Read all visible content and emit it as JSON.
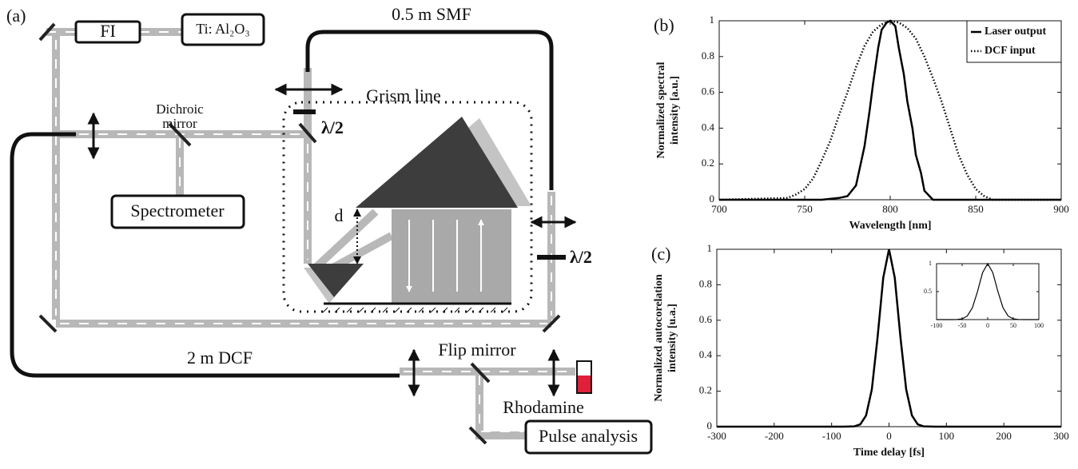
{
  "diagram": {
    "panel": "(a)",
    "fi": "FI",
    "laser": "Ti: Al₂O₃",
    "smf": "0.5 m SMF",
    "dichroic": [
      "Dichroic",
      "mirror"
    ],
    "grism": "Grism line",
    "half_wave": [
      "λ/2",
      "λ/2"
    ],
    "spectrometer": "Spectrometer",
    "d": "d",
    "dcf": "2 m DCF",
    "flip": "Flip mirror",
    "dye": "Rhodamine",
    "pulse": "Pulse analysis"
  },
  "chart_data": [
    {
      "type": "line",
      "panel": "(b)",
      "xlabel": "Wavelength [nm]",
      "ylabel": [
        "Normalized spectral",
        "intensity [a.u.]"
      ],
      "xlim": [
        700,
        900
      ],
      "xticks": [
        700,
        750,
        800,
        850,
        900
      ],
      "ylim": [
        0,
        1
      ],
      "yticks": [
        0,
        0.2,
        0.4,
        0.6,
        0.8,
        1
      ],
      "legend": "upper right",
      "series": [
        {
          "name": "Laser output",
          "color": "#000000",
          "dash": "solid",
          "x": [
            700,
            760,
            770,
            775,
            780,
            785,
            788,
            790,
            793,
            795,
            798,
            800,
            803,
            805,
            808,
            810,
            813,
            815,
            818,
            820,
            823,
            825,
            830,
            900
          ],
          "values": [
            0,
            0,
            0.01,
            0.02,
            0.08,
            0.3,
            0.5,
            0.65,
            0.85,
            0.95,
            0.99,
            1,
            0.97,
            0.85,
            0.7,
            0.55,
            0.4,
            0.25,
            0.15,
            0.05,
            0.02,
            0,
            0,
            0
          ]
        },
        {
          "name": "DCF input",
          "color": "#000000",
          "dash": "dotted",
          "x": [
            700,
            740,
            745,
            750,
            755,
            760,
            765,
            770,
            775,
            780,
            785,
            790,
            795,
            800,
            805,
            810,
            815,
            820,
            825,
            830,
            835,
            840,
            845,
            850,
            855,
            860,
            900
          ],
          "values": [
            0,
            0.01,
            0.03,
            0.06,
            0.12,
            0.22,
            0.33,
            0.47,
            0.6,
            0.74,
            0.86,
            0.94,
            0.98,
            1,
            0.99,
            0.96,
            0.9,
            0.8,
            0.68,
            0.55,
            0.4,
            0.25,
            0.14,
            0.06,
            0.02,
            0,
            0
          ]
        }
      ]
    },
    {
      "type": "line",
      "panel": "(c)",
      "xlabel": "Time delay [fs]",
      "ylabel": [
        "Normalized autocorelation",
        "intensity [u.a.]"
      ],
      "xlim": [
        -300,
        300
      ],
      "xticks": [
        -300,
        -200,
        -100,
        0,
        100,
        200,
        300
      ],
      "ylim": [
        0,
        1
      ],
      "yticks": [
        0,
        0.2,
        0.4,
        0.6,
        0.8,
        1
      ],
      "series": [
        {
          "color": "#000000",
          "dash": "solid",
          "x": [
            -300,
            -80,
            -60,
            -50,
            -40,
            -30,
            -20,
            -10,
            0,
            10,
            20,
            30,
            40,
            50,
            60,
            80,
            300
          ],
          "values": [
            0,
            0,
            0.002,
            0.013,
            0.063,
            0.21,
            0.5,
            0.84,
            1,
            0.84,
            0.5,
            0.21,
            0.063,
            0.013,
            0.002,
            0,
            0
          ]
        }
      ]
    },
    {
      "type": "line",
      "xlim": [
        -100,
        100
      ],
      "xticks": [
        -100,
        -50,
        0,
        50,
        100
      ],
      "ylim": [
        0,
        1
      ],
      "yticks": [
        0.5,
        1
      ],
      "series": [
        {
          "color": "#000000",
          "dash": "solid",
          "x": [
            -100,
            -70,
            -60,
            -50,
            -40,
            -30,
            -20,
            -10,
            0,
            10,
            20,
            30,
            40,
            50,
            60,
            70,
            100
          ],
          "values": [
            0,
            0,
            0.002,
            0.013,
            0.063,
            0.21,
            0.5,
            0.84,
            1,
            0.84,
            0.5,
            0.21,
            0.063,
            0.013,
            0.002,
            0,
            0
          ]
        }
      ]
    }
  ]
}
